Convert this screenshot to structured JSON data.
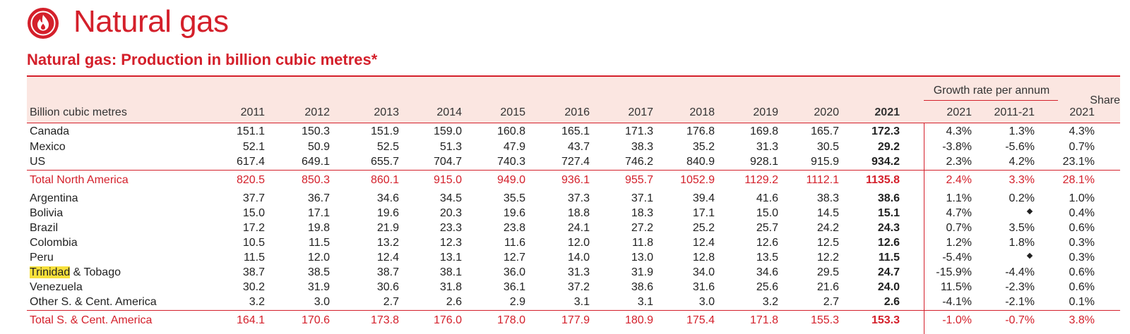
{
  "page": {
    "title": "Natural gas",
    "table_title": "Natural gas: Production in billion cubic metres*",
    "icon": "flame-icon",
    "accent_color": "#d4202b",
    "header_band_color": "#fbe6e1",
    "highlight_color": "#f7e03b"
  },
  "table": {
    "unit_label": "Billion cubic metres",
    "years": [
      "2011",
      "2012",
      "2013",
      "2014",
      "2015",
      "2016",
      "2017",
      "2018",
      "2019",
      "2020",
      "2021"
    ],
    "growth_label": "Growth rate per annum",
    "growth_cols": [
      "2021",
      "2011-21"
    ],
    "share_label": "Share",
    "share_col": "2021",
    "rows": [
      {
        "label": "Canada",
        "values": [
          "151.1",
          "150.3",
          "151.9",
          "159.0",
          "160.8",
          "165.1",
          "171.3",
          "176.8",
          "169.8",
          "165.7",
          "172.3"
        ],
        "growth": "4.3%",
        "growth_10y": "1.3%",
        "share": "4.3%"
      },
      {
        "label": "Mexico",
        "values": [
          "52.1",
          "50.9",
          "52.5",
          "51.3",
          "47.9",
          "43.7",
          "38.3",
          "35.2",
          "31.3",
          "30.5",
          "29.2"
        ],
        "growth": "-3.8%",
        "growth_10y": "-5.6%",
        "share": "0.7%"
      },
      {
        "label": "US",
        "values": [
          "617.4",
          "649.1",
          "655.7",
          "704.7",
          "740.3",
          "727.4",
          "746.2",
          "840.9",
          "928.1",
          "915.9",
          "934.2"
        ],
        "growth": "2.3%",
        "growth_10y": "4.2%",
        "share": "23.1%"
      },
      {
        "label": "Total North America",
        "total": true,
        "values": [
          "820.5",
          "850.3",
          "860.1",
          "915.0",
          "949.0",
          "936.1",
          "955.7",
          "1052.9",
          "1129.2",
          "1112.1",
          "1135.8"
        ],
        "growth": "2.4%",
        "growth_10y": "3.3%",
        "share": "28.1%"
      },
      {
        "label": "Argentina",
        "values": [
          "37.7",
          "36.7",
          "34.6",
          "34.5",
          "35.5",
          "37.3",
          "37.1",
          "39.4",
          "41.6",
          "38.3",
          "38.6"
        ],
        "growth": "1.1%",
        "growth_10y": "0.2%",
        "share": "1.0%"
      },
      {
        "label": "Bolivia",
        "values": [
          "15.0",
          "17.1",
          "19.6",
          "20.3",
          "19.6",
          "18.8",
          "18.3",
          "17.1",
          "15.0",
          "14.5",
          "15.1"
        ],
        "growth": "4.7%",
        "growth_10y": "◆",
        "share": "0.4%"
      },
      {
        "label": "Brazil",
        "values": [
          "17.2",
          "19.8",
          "21.9",
          "23.3",
          "23.8",
          "24.1",
          "27.2",
          "25.2",
          "25.7",
          "24.2",
          "24.3"
        ],
        "growth": "0.7%",
        "growth_10y": "3.5%",
        "share": "0.6%"
      },
      {
        "label": "Colombia",
        "values": [
          "10.5",
          "11.5",
          "13.2",
          "12.3",
          "11.6",
          "12.0",
          "11.8",
          "12.4",
          "12.6",
          "12.5",
          "12.6"
        ],
        "growth": "1.2%",
        "growth_10y": "1.8%",
        "share": "0.3%"
      },
      {
        "label": "Peru",
        "values": [
          "11.5",
          "12.0",
          "12.4",
          "13.1",
          "12.7",
          "14.0",
          "13.0",
          "12.8",
          "13.5",
          "12.2",
          "11.5"
        ],
        "growth": "-5.4%",
        "growth_10y": "◆",
        "share": "0.3%"
      },
      {
        "label": "Trinidad",
        "label_suffix": " & Tobago",
        "values": [
          "38.7",
          "38.5",
          "38.7",
          "38.1",
          "36.0",
          "31.3",
          "31.9",
          "34.0",
          "34.6",
          "29.5",
          "24.7"
        ],
        "growth": "-15.9%",
        "growth_10y": "-4.4%",
        "share": "0.6%"
      },
      {
        "label": "Venezuela",
        "values": [
          "30.2",
          "31.9",
          "30.6",
          "31.8",
          "36.1",
          "37.2",
          "38.6",
          "31.6",
          "25.6",
          "21.6",
          "24.0"
        ],
        "growth": "11.5%",
        "growth_10y": "-2.3%",
        "share": "0.6%"
      },
      {
        "label": "Other S. & Cent. America",
        "values": [
          "3.2",
          "3.0",
          "2.7",
          "2.6",
          "2.9",
          "3.1",
          "3.1",
          "3.0",
          "3.2",
          "2.7",
          "2.6"
        ],
        "growth": "-4.1%",
        "growth_10y": "-2.1%",
        "share": "0.1%"
      },
      {
        "label": "Total S. & Cent. America",
        "total": true,
        "values": [
          "164.1",
          "170.6",
          "173.8",
          "176.0",
          "178.0",
          "177.9",
          "180.9",
          "175.4",
          "171.8",
          "155.3",
          "153.3"
        ],
        "growth": "-1.0%",
        "growth_10y": "-0.7%",
        "share": "3.8%"
      }
    ]
  }
}
